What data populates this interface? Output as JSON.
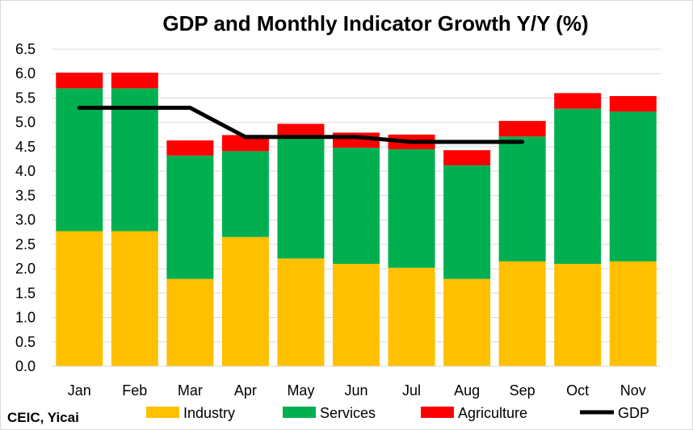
{
  "chart_data": {
    "type": "bar",
    "stacked": true,
    "title": "GDP and Monthly Indicator Growth Y/Y (%)",
    "xlabel": "",
    "ylabel": "",
    "ylim": [
      0,
      6.5
    ],
    "yticks": [
      "0.0",
      "0.5",
      "1.0",
      "1.5",
      "2.0",
      "2.5",
      "3.0",
      "3.5",
      "4.0",
      "4.5",
      "5.0",
      "5.5",
      "6.0",
      "6.5"
    ],
    "grid": true,
    "legend_position": "bottom",
    "categories": [
      "Jan",
      "Feb",
      "Mar",
      "Apr",
      "May",
      "Jun",
      "Jul",
      "Aug",
      "Sep",
      "Oct",
      "Nov"
    ],
    "series": [
      {
        "name": "Industry",
        "kind": "bar",
        "color": "#FFC000",
        "values": [
          2.77,
          2.77,
          1.79,
          2.65,
          2.21,
          2.1,
          2.02,
          1.79,
          2.15,
          2.1,
          2.15
        ]
      },
      {
        "name": "Services",
        "kind": "bar",
        "color": "#00B050",
        "values": [
          2.93,
          2.93,
          2.53,
          1.76,
          2.46,
          2.38,
          2.43,
          2.33,
          2.56,
          3.18,
          3.07
        ]
      },
      {
        "name": "Agriculture",
        "kind": "bar",
        "color": "#FF0000",
        "values": [
          0.32,
          0.32,
          0.31,
          0.33,
          0.3,
          0.31,
          0.3,
          0.31,
          0.32,
          0.32,
          0.32
        ]
      },
      {
        "name": "GDP",
        "kind": "line",
        "color": "#000000",
        "values": [
          5.3,
          5.3,
          5.3,
          4.7,
          4.7,
          4.7,
          4.6,
          4.6,
          4.6,
          null,
          null
        ]
      }
    ],
    "source": "CEIC, Yicai"
  }
}
